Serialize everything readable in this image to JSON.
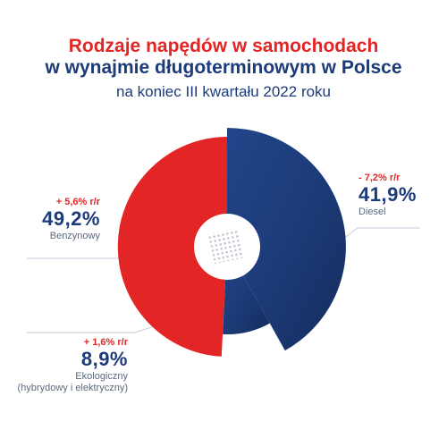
{
  "title": {
    "line1": "Rodzaje napędów w samochodach",
    "line2": "w wynajmie długoterminowym w Polsce",
    "subtitle": "na koniec III kwartału 2022 roku"
  },
  "colors": {
    "red": "#e32526",
    "navy": "#1c3b78",
    "gray_text": "#5a6a7e",
    "line": "#c5cdd8"
  },
  "chart_data": {
    "type": "pie",
    "title": "Rodzaje napędów w samochodach w wynajmie długoterminowym w Polsce",
    "subtitle": "na koniec III kwartału 2022 roku",
    "series": [
      {
        "name": "Benzynowy",
        "value": 49.2,
        "label": "49,2%",
        "change": "+ 5,6% r/r",
        "color": "#e32526"
      },
      {
        "name": "Diesel",
        "value": 41.9,
        "label": "41,9%",
        "change": "- 7,2% r/r",
        "color": "#1c3b78"
      },
      {
        "name": "Ekologiczny (hybrydowy i elektryczny)",
        "value": 8.9,
        "label": "8,9%",
        "change": "+ 1,6% r/r",
        "color": "#1c3b78"
      }
    ]
  },
  "labels": {
    "benzyna": {
      "change": "+ 5,6% r/r",
      "value": "49,2%",
      "name": "Benzynowy"
    },
    "diesel": {
      "change": "- 7,2% r/r",
      "value": "41,9%",
      "name": "Diesel"
    },
    "eko": {
      "change": "+ 1,6% r/r",
      "value": "8,9%",
      "name_line1": "Ekologiczny",
      "name_line2": "(hybrydowy i elektryczny)"
    }
  }
}
